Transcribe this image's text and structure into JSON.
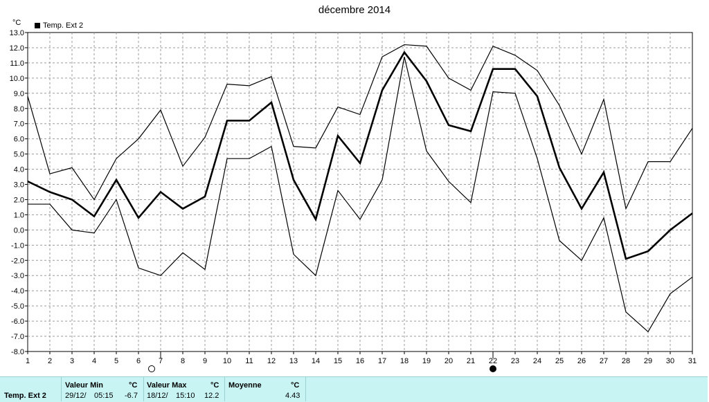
{
  "title": "décembre 2014",
  "unit": "°C",
  "legend": {
    "label": "Temp. Ext 2",
    "color": "#000000"
  },
  "colors": {
    "line": "#000000",
    "grid": "#9a9a9a",
    "footer_bg": "#c8f4f4"
  },
  "chart_data": {
    "type": "line",
    "x": [
      1,
      2,
      3,
      4,
      5,
      6,
      7,
      8,
      9,
      10,
      11,
      12,
      13,
      14,
      15,
      16,
      17,
      18,
      19,
      20,
      21,
      22,
      23,
      24,
      25,
      26,
      27,
      28,
      29,
      30,
      31
    ],
    "xlim": [
      1,
      31
    ],
    "ylim": [
      -8,
      13
    ],
    "yticks": [
      "13.0",
      "12.0",
      "11.0",
      "10.0",
      "9.0",
      "8.0",
      "7.0",
      "6.0",
      "5.0",
      "4.0",
      "3.0",
      "2.0",
      "1.0",
      "0.0",
      "-1.0",
      "-2.0",
      "-3.0",
      "-4.0",
      "-5.0",
      "-6.0",
      "-7.0",
      "-8.0"
    ],
    "xticks": [
      "1",
      "2",
      "3",
      "4",
      "5",
      "6",
      "7",
      "8",
      "9",
      "10",
      "11",
      "12",
      "13",
      "14",
      "15",
      "16",
      "17",
      "18",
      "19",
      "20",
      "21",
      "22",
      "23",
      "24",
      "25",
      "26",
      "27",
      "28",
      "29",
      "30",
      "31"
    ],
    "grid": true,
    "series": [
      {
        "role": "max",
        "width": 1.2,
        "values": [
          8.8,
          3.7,
          4.1,
          2.0,
          4.7,
          6.0,
          7.9,
          4.2,
          6.1,
          9.6,
          9.5,
          10.1,
          5.5,
          5.4,
          8.1,
          7.6,
          11.4,
          12.2,
          12.1,
          10.0,
          9.2,
          12.1,
          11.5,
          10.5,
          8.2,
          5.0,
          8.6,
          1.4,
          4.5,
          4.5,
          6.7
        ]
      },
      {
        "role": "mean",
        "width": 2.6,
        "values": [
          3.2,
          2.5,
          2.0,
          0.9,
          3.3,
          0.8,
          2.5,
          1.4,
          2.2,
          7.2,
          7.2,
          8.4,
          3.3,
          0.7,
          6.2,
          4.4,
          9.2,
          11.7,
          9.8,
          6.9,
          6.5,
          10.6,
          10.6,
          8.8,
          4.1,
          1.4,
          3.8,
          -1.9,
          -1.4,
          0.0,
          1.1
        ]
      },
      {
        "role": "min",
        "width": 1.2,
        "values": [
          1.7,
          1.7,
          0.0,
          -0.2,
          2.0,
          -2.5,
          -3.0,
          -1.5,
          -2.6,
          4.7,
          4.7,
          5.5,
          -1.6,
          -3.0,
          2.6,
          0.7,
          3.3,
          11.4,
          5.2,
          3.2,
          1.8,
          9.1,
          9.0,
          4.7,
          -0.7,
          -2.0,
          0.8,
          -5.4,
          -6.7,
          -4.2,
          -3.1
        ]
      }
    ],
    "moon_markers": [
      {
        "day": 7,
        "phase": "full-moon"
      },
      {
        "day": 22,
        "phase": "new-moon"
      }
    ]
  },
  "footer": {
    "row_label": "Temp. Ext 2",
    "min_header": "Valeur Min",
    "max_header": "Valeur Max",
    "mean_header": "Moyenne",
    "unit": "°C",
    "min_date": "29/12/",
    "min_time": "05:15",
    "min_value": "-6.7",
    "max_date": "18/12/",
    "max_time": "15:10",
    "max_value": "12.2",
    "mean_value": "4.43"
  }
}
